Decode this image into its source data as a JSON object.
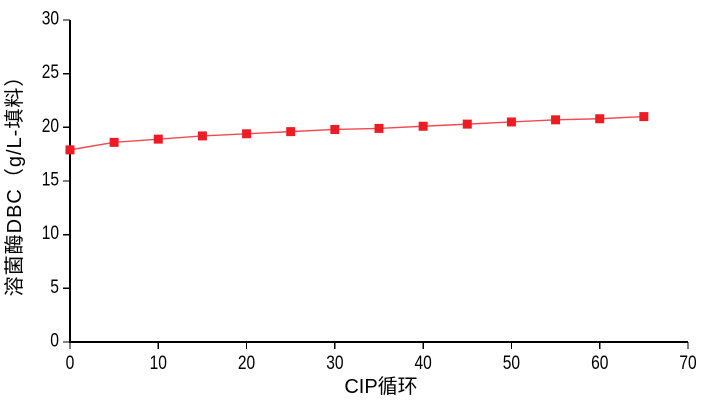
{
  "page": {
    "background": "#ffffff"
  },
  "chart_data": {
    "type": "line",
    "title": "",
    "xlabel": "CIP循环",
    "ylabel": "溶菌酶DBC（g/L-填料）",
    "x": [
      0,
      5,
      10,
      15,
      20,
      25,
      30,
      35,
      40,
      45,
      50,
      55,
      60,
      65
    ],
    "series": [
      {
        "name": "溶菌酶DBC",
        "values": [
          17.9,
          18.6,
          18.9,
          19.2,
          19.4,
          19.6,
          19.8,
          19.9,
          20.1,
          20.3,
          20.5,
          20.7,
          20.8,
          21.0
        ],
        "color": "#ed1c24",
        "marker": "square",
        "marker_size": 9,
        "line_width": 1.4
      }
    ],
    "xlim": [
      0,
      70
    ],
    "ylim": [
      0,
      30
    ],
    "xticks": [
      0,
      10,
      20,
      30,
      40,
      50,
      60,
      70
    ],
    "yticks": [
      0,
      5,
      10,
      15,
      20,
      25,
      30
    ],
    "grid": false,
    "legend": "none",
    "axis_color": "#000000",
    "tick_label_color": "#000000",
    "tick_label_font_size": 19
  }
}
